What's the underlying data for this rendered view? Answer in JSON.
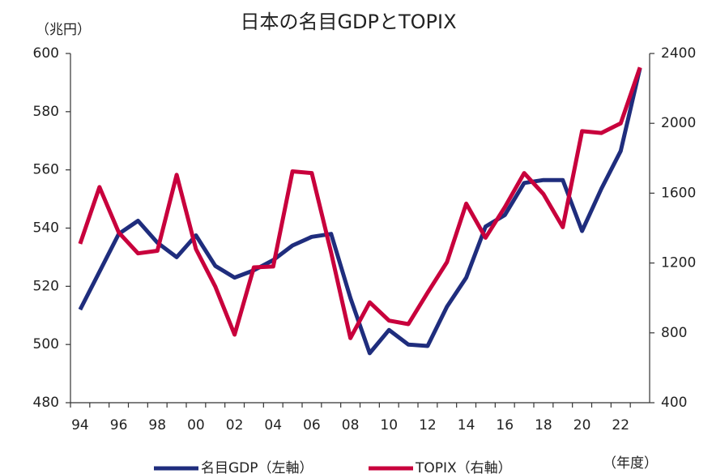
{
  "chart_data": {
    "type": "line",
    "title": "日本の名目GDPとTOPIX",
    "y_label": "（兆円）",
    "x_label": "（年度）",
    "categories": [
      "94",
      null,
      "96",
      null,
      "98",
      null,
      "00",
      null,
      "02",
      null,
      "04",
      null,
      "06",
      null,
      "08",
      null,
      "10",
      null,
      "12",
      null,
      "14",
      null,
      "16",
      null,
      "18",
      null,
      "20",
      null,
      "22",
      null
    ],
    "series": [
      {
        "name": "名目GDP（左軸）",
        "color": "#1f2d7d",
        "axis": "y",
        "values": [
          512,
          525,
          538,
          542.5,
          535,
          530,
          537.5,
          527,
          523,
          525.5,
          529,
          534,
          537,
          538,
          516,
          497,
          505,
          500,
          499.5,
          513,
          523,
          540.5,
          544.5,
          555.5,
          556.5,
          556.5,
          539,
          553.5,
          566.5,
          595
        ]
      },
      {
        "name": "TOPIX（右軸）",
        "color": "#c8003c",
        "axis": "y2",
        "values": [
          1310,
          1635,
          1375,
          1255,
          1270,
          1705,
          1280,
          1065,
          790,
          1175,
          1180,
          1725,
          1715,
          1260,
          770,
          975,
          870,
          850,
          1030,
          1205,
          1540,
          1345,
          1520,
          1715,
          1595,
          1405,
          1955,
          1945,
          2000,
          2320
        ]
      }
    ],
    "ylim": [
      480,
      600
    ],
    "yticks": [
      480,
      500,
      520,
      540,
      560,
      580,
      600
    ],
    "y2lim": [
      400,
      2400
    ],
    "y2ticks": [
      400,
      800,
      1200,
      1600,
      2000,
      2400
    ],
    "grid": false,
    "legend": "bottom"
  }
}
